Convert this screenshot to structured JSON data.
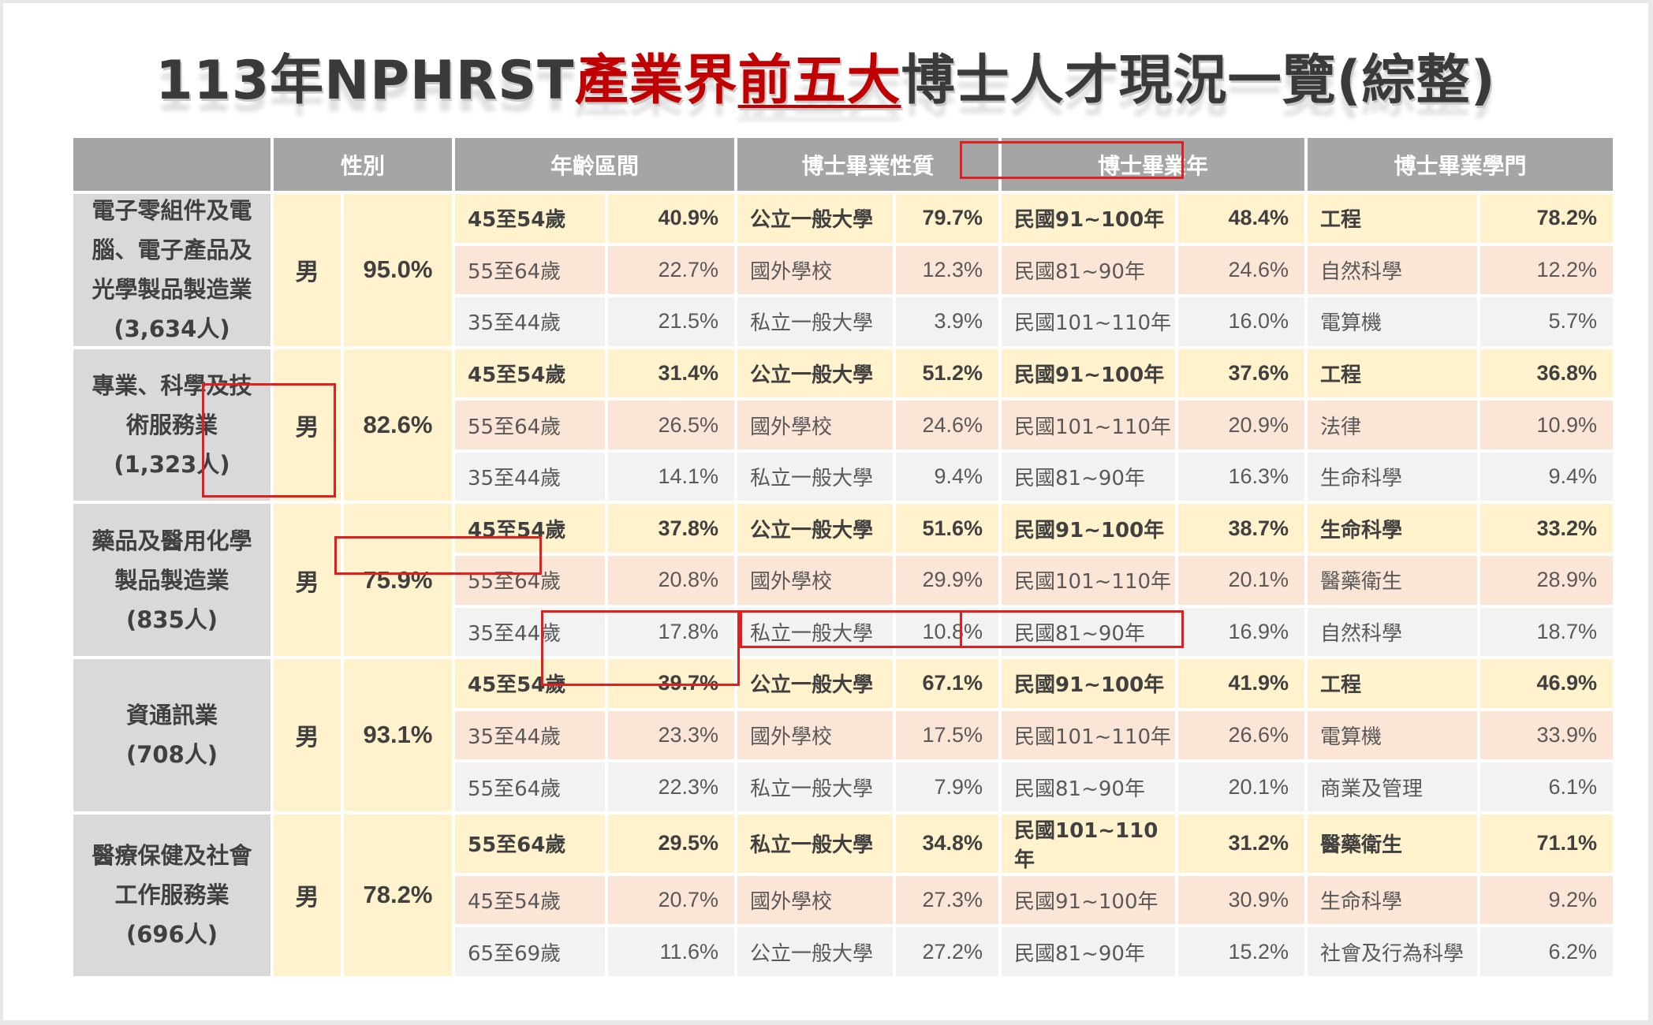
{
  "title": {
    "prefix": "113年NPHRST",
    "highlight_1": "產業界",
    "highlight_2": "前五大",
    "suffix": "博士人才現況一覽(綜整)"
  },
  "headers": [
    "",
    "性別",
    "年齡區間",
    "博士畢業性質",
    "博士畢業年",
    "博士畢業學門"
  ],
  "industries": [
    {
      "name_lines": [
        "電子零組件及電",
        "腦、電子產品及",
        "光學製品製造業",
        "(3,634人)"
      ],
      "gender": "男",
      "gender_pct": "95.0%",
      "rows": [
        [
          "45至54歲",
          "40.9%",
          "公立一般大學",
          "79.7%",
          "民國91~100年",
          "48.4%",
          "工程",
          "78.2%"
        ],
        [
          "55至64歲",
          "22.7%",
          "國外學校",
          "12.3%",
          "民國81~90年",
          "24.6%",
          "自然科學",
          "12.2%"
        ],
        [
          "35至44歲",
          "21.5%",
          "私立一般大學",
          "3.9%",
          "民國101~110年",
          "16.0%",
          "電算機",
          "5.7%"
        ]
      ]
    },
    {
      "name_lines": [
        "專業、科學及技",
        "術服務業",
        "(1,323人)"
      ],
      "gender": "男",
      "gender_pct": "82.6%",
      "rows": [
        [
          "45至54歲",
          "31.4%",
          "公立一般大學",
          "51.2%",
          "民國91~100年",
          "37.6%",
          "工程",
          "36.8%"
        ],
        [
          "55至64歲",
          "26.5%",
          "國外學校",
          "24.6%",
          "民國101~110年",
          "20.9%",
          "法律",
          "10.9%"
        ],
        [
          "35至44歲",
          "14.1%",
          "私立一般大學",
          "9.4%",
          "民國81~90年",
          "16.3%",
          "生命科學",
          "9.4%"
        ]
      ]
    },
    {
      "name_lines": [
        "藥品及醫用化學",
        "製品製造業",
        "(835人)"
      ],
      "gender": "男",
      "gender_pct": "75.9%",
      "rows": [
        [
          "45至54歲",
          "37.8%",
          "公立一般大學",
          "51.6%",
          "民國91~100年",
          "38.7%",
          "生命科學",
          "33.2%"
        ],
        [
          "55至64歲",
          "20.8%",
          "國外學校",
          "29.9%",
          "民國101~110年",
          "20.1%",
          "醫藥衛生",
          "28.9%"
        ],
        [
          "35至44歲",
          "17.8%",
          "私立一般大學",
          "10.8%",
          "民國81~90年",
          "16.9%",
          "自然科學",
          "18.7%"
        ]
      ]
    },
    {
      "name_lines": [
        "資通訊業",
        "(708人)"
      ],
      "gender": "男",
      "gender_pct": "93.1%",
      "rows": [
        [
          "45至54歲",
          "39.7%",
          "公立一般大學",
          "67.1%",
          "民國91~100年",
          "41.9%",
          "工程",
          "46.9%"
        ],
        [
          "35至44歲",
          "23.3%",
          "國外學校",
          "17.5%",
          "民國101~110年",
          "26.6%",
          "電算機",
          "33.9%"
        ],
        [
          "55至64歲",
          "22.3%",
          "私立一般大學",
          "7.9%",
          "民國81~90年",
          "20.1%",
          "商業及管理",
          "6.1%"
        ]
      ]
    },
    {
      "name_lines": [
        "醫療保健及社會",
        "工作服務業",
        "(696人)"
      ],
      "gender": "男",
      "gender_pct": "78.2%",
      "rows": [
        [
          "55至64歲",
          "29.5%",
          "私立一般大學",
          "34.8%",
          "民國101~110年",
          "31.2%",
          "醫藥衛生",
          "71.1%"
        ],
        [
          "45至54歲",
          "20.7%",
          "國外學校",
          "27.3%",
          "民國91~100年",
          "30.9%",
          "生命科學",
          "9.2%"
        ],
        [
          "65至69歲",
          "11.6%",
          "公立一般大學",
          "27.2%",
          "民國81~90年",
          "15.2%",
          "社會及行為科學",
          "6.2%"
        ]
      ]
    }
  ],
  "highlight_color": "#e02020"
}
